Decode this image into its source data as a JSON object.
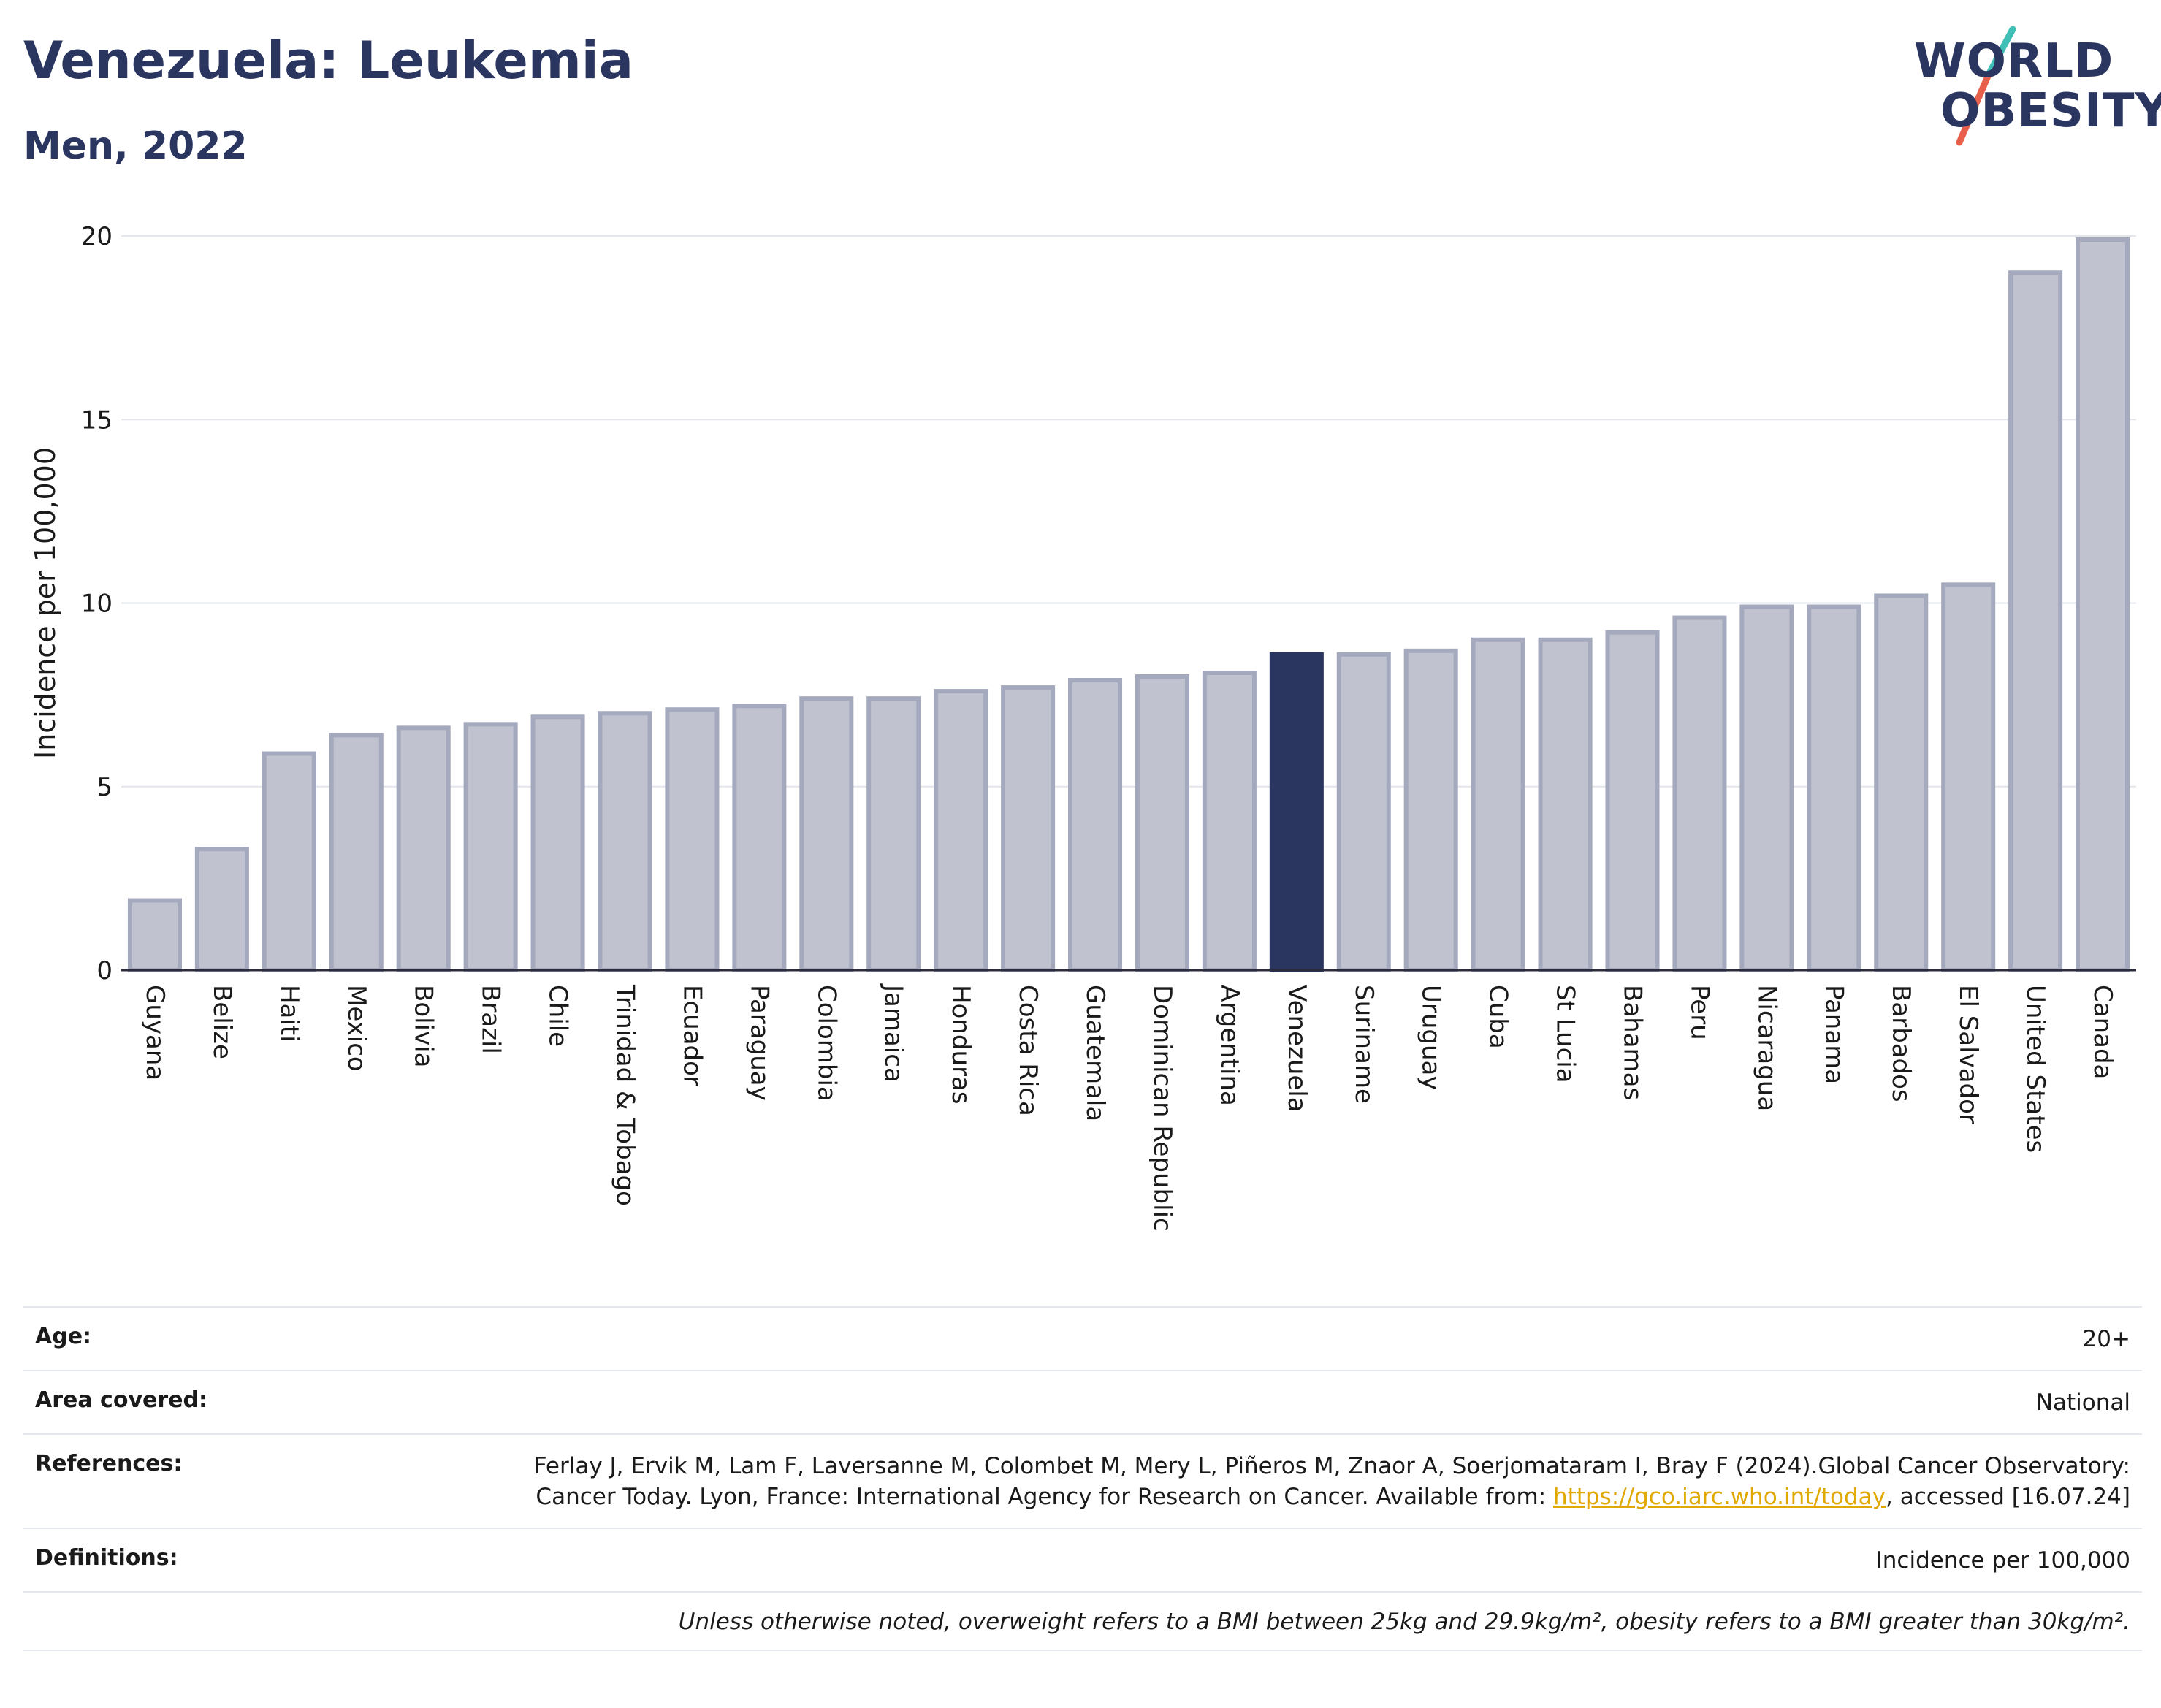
{
  "header": {
    "title": "Venezuela: Leukemia",
    "subtitle": "Men, 2022"
  },
  "logo": {
    "line1": "WORLD",
    "line2": "OBESITY",
    "slash_colors": [
      "#3fbfb5",
      "#e8604c"
    ]
  },
  "colors": {
    "highlight_bar": "#2a3560",
    "default_bar": "#c0c3cf",
    "default_bar_border": "#a4a9bd",
    "title": "#2a3560",
    "link": "#e0a800"
  },
  "chart_data": {
    "type": "bar",
    "ylabel": "Incidence per 100,000",
    "ylim": [
      0,
      20
    ],
    "yticks": [
      0,
      5,
      10,
      15,
      20
    ],
    "grid": true,
    "highlight": "Venezuela",
    "categories": [
      "Guyana",
      "Belize",
      "Haiti",
      "Mexico",
      "Bolivia",
      "Brazil",
      "Chile",
      "Trinidad & Tobago",
      "Ecuador",
      "Paraguay",
      "Colombia",
      "Jamaica",
      "Honduras",
      "Costa Rica",
      "Guatemala",
      "Dominican Republic",
      "Argentina",
      "Venezuela",
      "Suriname",
      "Uruguay",
      "Cuba",
      "St Lucia",
      "Bahamas",
      "Peru",
      "Nicaragua",
      "Panama",
      "Barbados",
      "El Salvador",
      "United States",
      "Canada"
    ],
    "values": [
      1.9,
      3.3,
      5.9,
      6.4,
      6.6,
      6.7,
      6.9,
      7.0,
      7.1,
      7.2,
      7.4,
      7.4,
      7.6,
      7.7,
      7.9,
      8.0,
      8.1,
      8.6,
      8.6,
      8.7,
      9.0,
      9.0,
      9.2,
      9.6,
      9.9,
      9.9,
      10.2,
      10.5,
      19.0,
      19.9
    ]
  },
  "meta": {
    "age_label": "Age:",
    "age_value": "20+",
    "area_label": "Area covered:",
    "area_value": "National",
    "references_label": "References:",
    "references_text_before": "Ferlay J, Ervik M, Lam F, Laversanne M, Colombet M, Mery L, Piñeros M, Znaor A, Soerjomataram I, Bray F (2024).Global Cancer Observatory: Cancer Today. Lyon, France: International Agency for Research on Cancer. Available from: ",
    "references_link": "https://gco.iarc.who.int/today",
    "references_text_after": ", accessed [16.07.24]",
    "definitions_label": "Definitions:",
    "definitions_value": "Incidence per 100,000",
    "note": "Unless otherwise noted, overweight refers to a BMI between 25kg and 29.9kg/m², obesity refers to a BMI greater than 30kg/m²."
  }
}
